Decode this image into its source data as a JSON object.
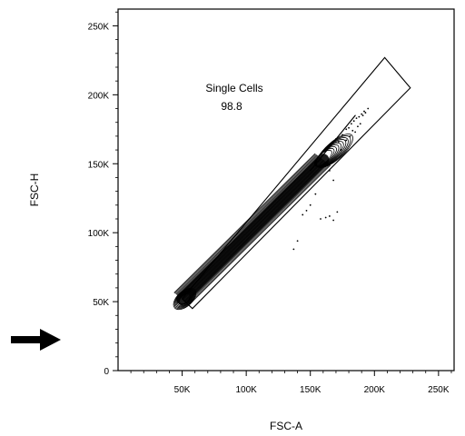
{
  "chart_data": {
    "type": "scatter",
    "subtype": "flow-cytometry-contour-plot",
    "xlabel": "FSC-A",
    "ylabel": "FSC-H",
    "xlim": [
      0,
      262144
    ],
    "ylim": [
      0,
      262144
    ],
    "x_ticks": [
      {
        "value": 50000,
        "label": "50K"
      },
      {
        "value": 100000,
        "label": "100K"
      },
      {
        "value": 150000,
        "label": "150K"
      },
      {
        "value": 200000,
        "label": "200K"
      },
      {
        "value": 250000,
        "label": "250K"
      }
    ],
    "y_ticks": [
      {
        "value": 0,
        "label": "0"
      },
      {
        "value": 50000,
        "label": "50K"
      },
      {
        "value": 100000,
        "label": "100K"
      },
      {
        "value": 150000,
        "label": "150K"
      },
      {
        "value": 200000,
        "label": "200K"
      },
      {
        "value": 250000,
        "label": "250K"
      }
    ],
    "gate": {
      "name": "Single Cells",
      "value": "98.8",
      "polygon": [
        [
          50000,
          52000
        ],
        [
          58000,
          45000
        ],
        [
          228000,
          205000
        ],
        [
          208000,
          227000
        ]
      ]
    },
    "population": {
      "center_line": [
        [
          50000,
          52000
        ],
        [
          160000,
          153000
        ]
      ],
      "tail": [
        [
          150000,
          145000
        ],
        [
          185000,
          185000
        ]
      ]
    },
    "grid": false,
    "legend": "none"
  },
  "arrow": {
    "icon": "right-arrow-icon",
    "color": "#000000"
  }
}
